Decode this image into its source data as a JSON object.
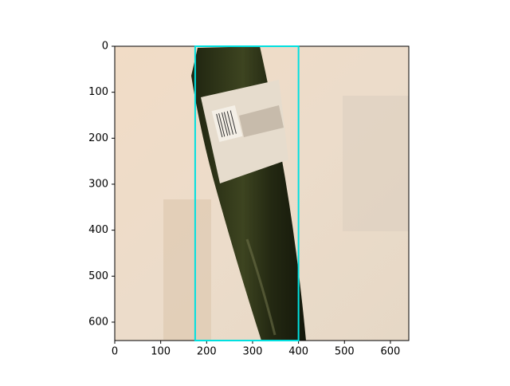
{
  "chart_data": {
    "type": "image",
    "xlim": [
      0,
      640
    ],
    "ylim": [
      640,
      0
    ],
    "xticks": [
      0,
      100,
      200,
      300,
      400,
      500,
      600
    ],
    "yticks": [
      0,
      100,
      200,
      300,
      400,
      500,
      600
    ],
    "boxes": [
      {
        "x0": 175,
        "y0": 0,
        "x1": 400,
        "y1": 640,
        "color": "#00e0e0"
      }
    ]
  }
}
